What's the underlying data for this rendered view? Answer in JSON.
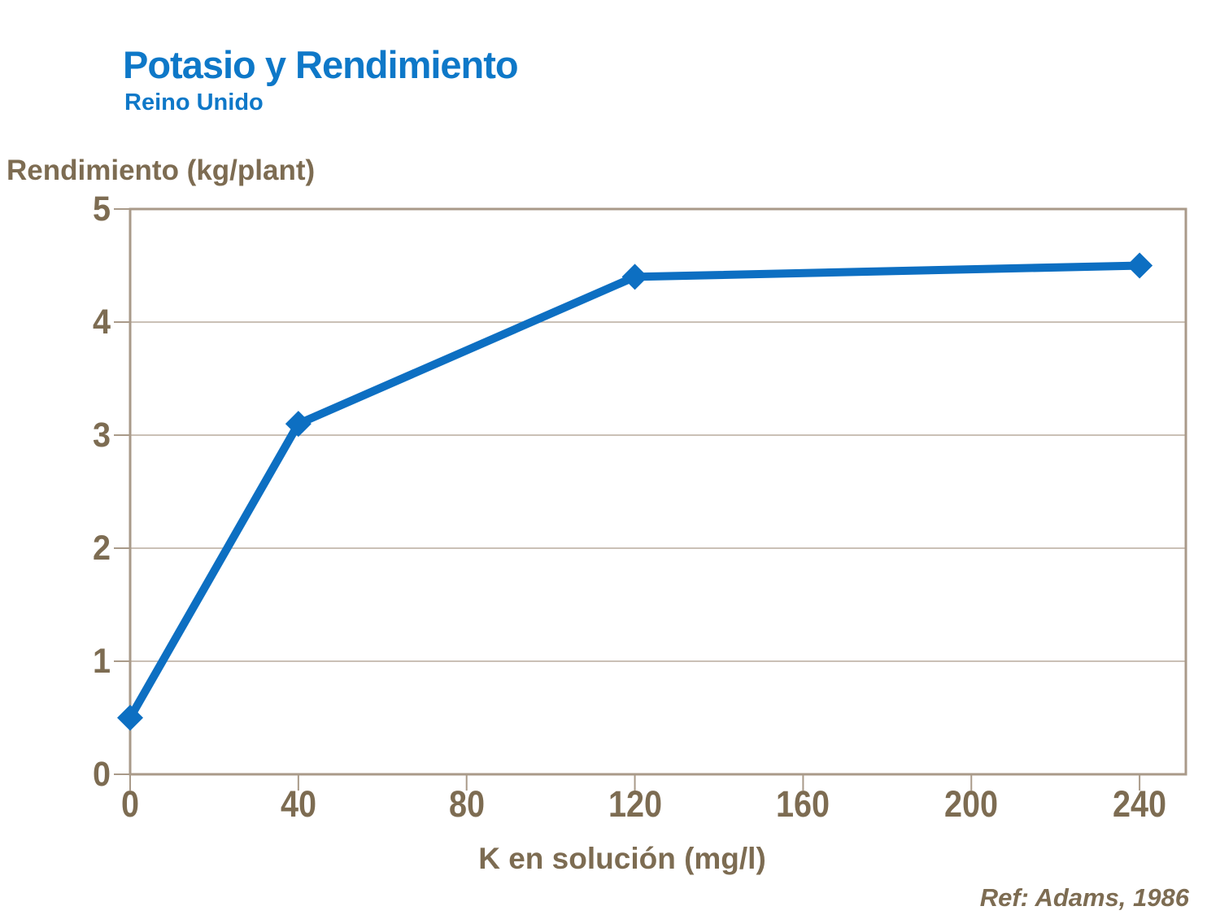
{
  "header": {
    "title": "Potasio y Rendimiento",
    "subtitle": "Reino Unido"
  },
  "chart_data": {
    "type": "line",
    "x": [
      0,
      40,
      120,
      240
    ],
    "y": [
      0.5,
      3.1,
      4.4,
      4.5
    ],
    "xlabel": "K en solución (mg/l)",
    "ylabel": "Rendimiento (kg/plant)",
    "xlim": [
      0,
      251
    ],
    "ylim": [
      0,
      5
    ],
    "xticks": [
      0,
      40,
      80,
      120,
      160,
      200,
      240
    ],
    "yticks": [
      0,
      1,
      2,
      3,
      4,
      5
    ],
    "grid": "horizontal",
    "marker": "diamond",
    "legend": "none",
    "line_color": "#0d6fc2",
    "axis_color": "#a99a89",
    "grid_color": "#b9ac9d",
    "label_color": "#7d6c52"
  },
  "footer": {
    "ref": "Ref: Adams, 1986"
  }
}
